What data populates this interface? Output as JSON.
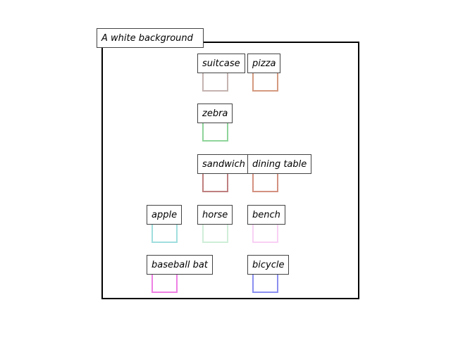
{
  "caption": "A white background",
  "objects": [
    {
      "label": "suitcase",
      "color": "#c4b4b0"
    },
    {
      "label": "pizza",
      "color": "#d49a80"
    },
    {
      "label": "zebra",
      "color": "#8fd49a"
    },
    {
      "label": "sandwich",
      "color": "#bf7f7f"
    },
    {
      "label": "dining table",
      "color": "#d49080"
    },
    {
      "label": "apple",
      "color": "#a0dede"
    },
    {
      "label": "horse",
      "color": "#cfeed8"
    },
    {
      "label": "bench",
      "color": "#f8d0f4"
    },
    {
      "label": "baseball bat",
      "color": "#ee80e4"
    },
    {
      "label": "bicycle",
      "color": "#8a8ef0"
    }
  ]
}
